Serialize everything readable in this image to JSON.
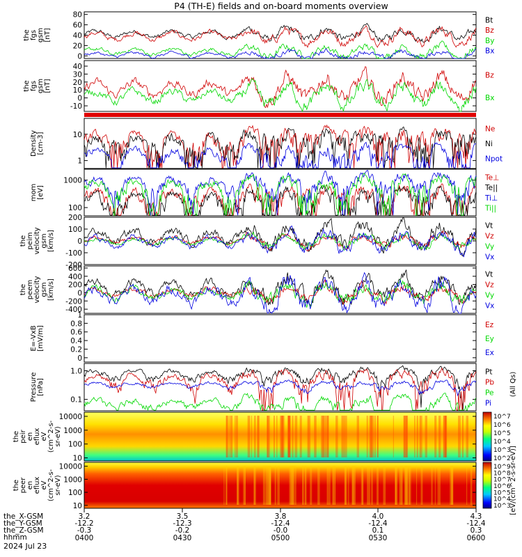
{
  "title": "P4 (TH-E) fields and on-board moments overview",
  "colors": {
    "black": "#000000",
    "red": "#d00000",
    "green": "#00d800",
    "blue": "#0000e0"
  },
  "chart_data": {
    "type": "line",
    "time_axis": {
      "tick_labels": [
        "0400",
        "0430",
        "0500",
        "0530",
        "0600"
      ],
      "date_label": "2024 Jul 23",
      "rows": [
        {
          "name": "the_X-GSM",
          "values": [
            "3.2",
            "3.5",
            "3.8",
            "4.0",
            "4.3"
          ]
        },
        {
          "name": "the_Y-GSM",
          "values": [
            "-12.2",
            "-12.3",
            "-12.4",
            "-12.4",
            "-12.4"
          ]
        },
        {
          "name": "the_Z-GSM",
          "values": [
            "-0.3",
            "-0.2",
            "-0.0",
            "0.1",
            "0.3"
          ]
        },
        {
          "name": "hhmm",
          "values": [],
          "label_only": true
        }
      ]
    },
    "panels": [
      {
        "id": "fgs-gsm",
        "ylabel": [
          "the",
          "fgs",
          "gsm",
          "[nT]"
        ],
        "ylim": [
          -5,
          85
        ],
        "yticks": [
          0,
          20,
          40,
          60,
          80
        ],
        "scale": "linear",
        "series": [
          {
            "name": "Bt",
            "color": "black"
          },
          {
            "name": "Bz",
            "color": "red"
          },
          {
            "name": "By",
            "color": "green"
          },
          {
            "name": "Bx",
            "color": "blue"
          }
        ]
      },
      {
        "id": "fgs-gsm-zoom",
        "ylabel": [
          "the",
          "fgs",
          "gsm",
          "[nT]"
        ],
        "ylim": [
          -17,
          47
        ],
        "yticks": [
          -10,
          0,
          10,
          20,
          30,
          40
        ],
        "scale": "linear",
        "series": [
          {
            "name": "Bz",
            "color": "red"
          },
          {
            "name": "Bx",
            "color": "green"
          }
        ]
      },
      {
        "id": "density",
        "ylabel": [
          "Density",
          "[cm-3]"
        ],
        "ylim": [
          0.5,
          40
        ],
        "yticks": [
          1,
          10
        ],
        "scale": "log",
        "series": [
          {
            "name": "Ne",
            "color": "red"
          },
          {
            "name": "Ni",
            "color": "black"
          },
          {
            "name": "Npot",
            "color": "blue"
          }
        ]
      },
      {
        "id": "temperature",
        "ylabel": [
          "mom",
          "[eV]"
        ],
        "ylim": [
          50,
          2500
        ],
        "yticks": [
          100,
          1000
        ],
        "scale": "log",
        "series": [
          {
            "name": "Te⊥",
            "color": "red"
          },
          {
            "name": "Te||",
            "color": "black"
          },
          {
            "name": "Ti⊥",
            "color": "blue"
          },
          {
            "name": "Ti||",
            "color": "green"
          }
        ]
      },
      {
        "id": "peim-velocity",
        "ylabel": [
          "the",
          "peim",
          "velocity",
          "gsm",
          "[km/s]"
        ],
        "ylim": [
          -200,
          200
        ],
        "yticks": [
          -200,
          -100,
          0,
          100,
          200
        ],
        "scale": "linear",
        "series": [
          {
            "name": "Vt",
            "color": "black"
          },
          {
            "name": "Vz",
            "color": "red"
          },
          {
            "name": "Vy",
            "color": "green"
          },
          {
            "name": "Vx",
            "color": "blue"
          }
        ]
      },
      {
        "id": "peem-velocity",
        "ylabel": [
          "the",
          "peem",
          "velocity",
          "gsm",
          "[km/s]"
        ],
        "ylim": [
          -500,
          650
        ],
        "yticks": [
          -400,
          -200,
          0,
          200,
          400,
          600
        ],
        "scale": "linear",
        "series": [
          {
            "name": "Vt",
            "color": "black"
          },
          {
            "name": "Vz",
            "color": "red"
          },
          {
            "name": "Vy",
            "color": "green"
          },
          {
            "name": "Vx",
            "color": "blue"
          }
        ]
      },
      {
        "id": "e-field",
        "ylabel": [
          "E=-VxB",
          "[mV/m]"
        ],
        "ylim": [
          -0.1,
          1.0
        ],
        "yticks": [
          0.0,
          0.2,
          0.4,
          0.6,
          0.8,
          1.0
        ],
        "scale": "linear",
        "series": [
          {
            "name": "Ez",
            "color": "red"
          },
          {
            "name": "Ey",
            "color": "green"
          },
          {
            "name": "Ex",
            "color": "blue"
          }
        ]
      },
      {
        "id": "pressure",
        "ylabel": [
          "Pressure",
          "[nPa]"
        ],
        "ylim": [
          0.04,
          1.8
        ],
        "yticks": [
          0.1,
          1.0
        ],
        "tick_labels": [
          "0.1",
          "1.0"
        ],
        "scale": "log",
        "series": [
          {
            "name": "Pt",
            "color": "black"
          },
          {
            "name": "Pb",
            "color": "red"
          },
          {
            "name": "Pe",
            "color": "green"
          },
          {
            "name": "Pi",
            "color": "blue"
          }
        ],
        "side_label": "(All Qs)"
      },
      {
        "id": "peir-spectrogram",
        "type": "heatmap",
        "ylabel": [
          "the",
          "peir",
          "en",
          "eflux",
          "eV",
          "(cm^2-s-",
          "sr-eV)"
        ],
        "yticks": [
          10,
          100,
          1000,
          10000
        ],
        "scale": "log",
        "colorbar": {
          "ticks": [
            "10^7",
            "10^6",
            "10^5",
            "10^4",
            "10^3",
            "10^2"
          ]
        }
      },
      {
        "id": "peer-spectrogram",
        "type": "heatmap",
        "ylabel": [
          "the",
          "peer",
          "en",
          "eflux",
          "eV",
          "(cm^2-s-",
          "sr-eV)"
        ],
        "yticks": [
          10,
          100,
          1000,
          10000
        ],
        "scale": "log",
        "colorbar": {
          "ticks": [
            "10^9",
            "10^8",
            "10^7",
            "10^6",
            "10^5",
            "10^4",
            "10^3"
          ]
        }
      }
    ],
    "colorbar_label": "[eV/(cm^2-s-sr-eV)]"
  }
}
